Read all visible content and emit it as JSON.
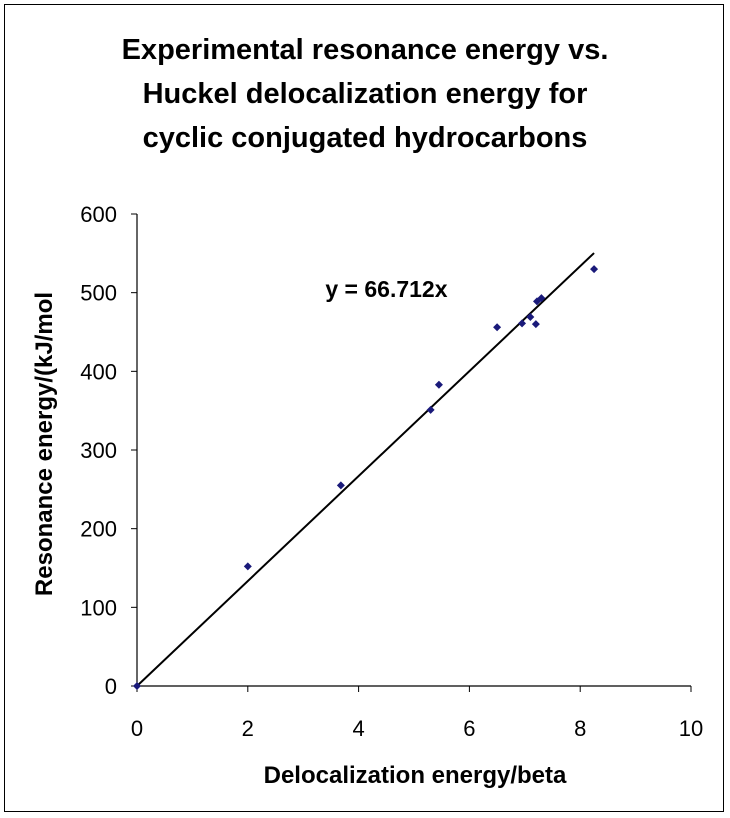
{
  "chart_data": {
    "type": "scatter",
    "title_lines": [
      "Experimental resonance energy vs.",
      "Huckel delocalization energy for",
      "cyclic conjugated hydrocarbons"
    ],
    "xlabel": "Delocalization energy/beta",
    "ylabel": "Resonance energy/(kJ/mol",
    "xlim": [
      0,
      10
    ],
    "ylim": [
      0,
      600
    ],
    "x_ticks": [
      0,
      2,
      4,
      6,
      8,
      10
    ],
    "y_ticks": [
      0,
      100,
      200,
      300,
      400,
      500,
      600
    ],
    "grid": false,
    "legend": "none",
    "series": [
      {
        "points": [
          {
            "x": 0.0,
            "y": 0
          },
          {
            "x": 2.0,
            "y": 152
          },
          {
            "x": 3.68,
            "y": 255
          },
          {
            "x": 5.3,
            "y": 351
          },
          {
            "x": 5.45,
            "y": 383
          },
          {
            "x": 6.5,
            "y": 456
          },
          {
            "x": 6.95,
            "y": 461
          },
          {
            "x": 7.1,
            "y": 469
          },
          {
            "x": 7.2,
            "y": 460
          },
          {
            "x": 7.22,
            "y": 489
          },
          {
            "x": 7.3,
            "y": 493
          },
          {
            "x": 8.25,
            "y": 530
          }
        ],
        "color": "#1a1a7a"
      }
    ],
    "trendline": {
      "slope": 66.712,
      "intercept": 0,
      "x_range": [
        0,
        8.25
      ],
      "label": "y = 66.712x",
      "label_position": {
        "x": 3.4,
        "y": 515
      },
      "color": "#000000"
    }
  }
}
